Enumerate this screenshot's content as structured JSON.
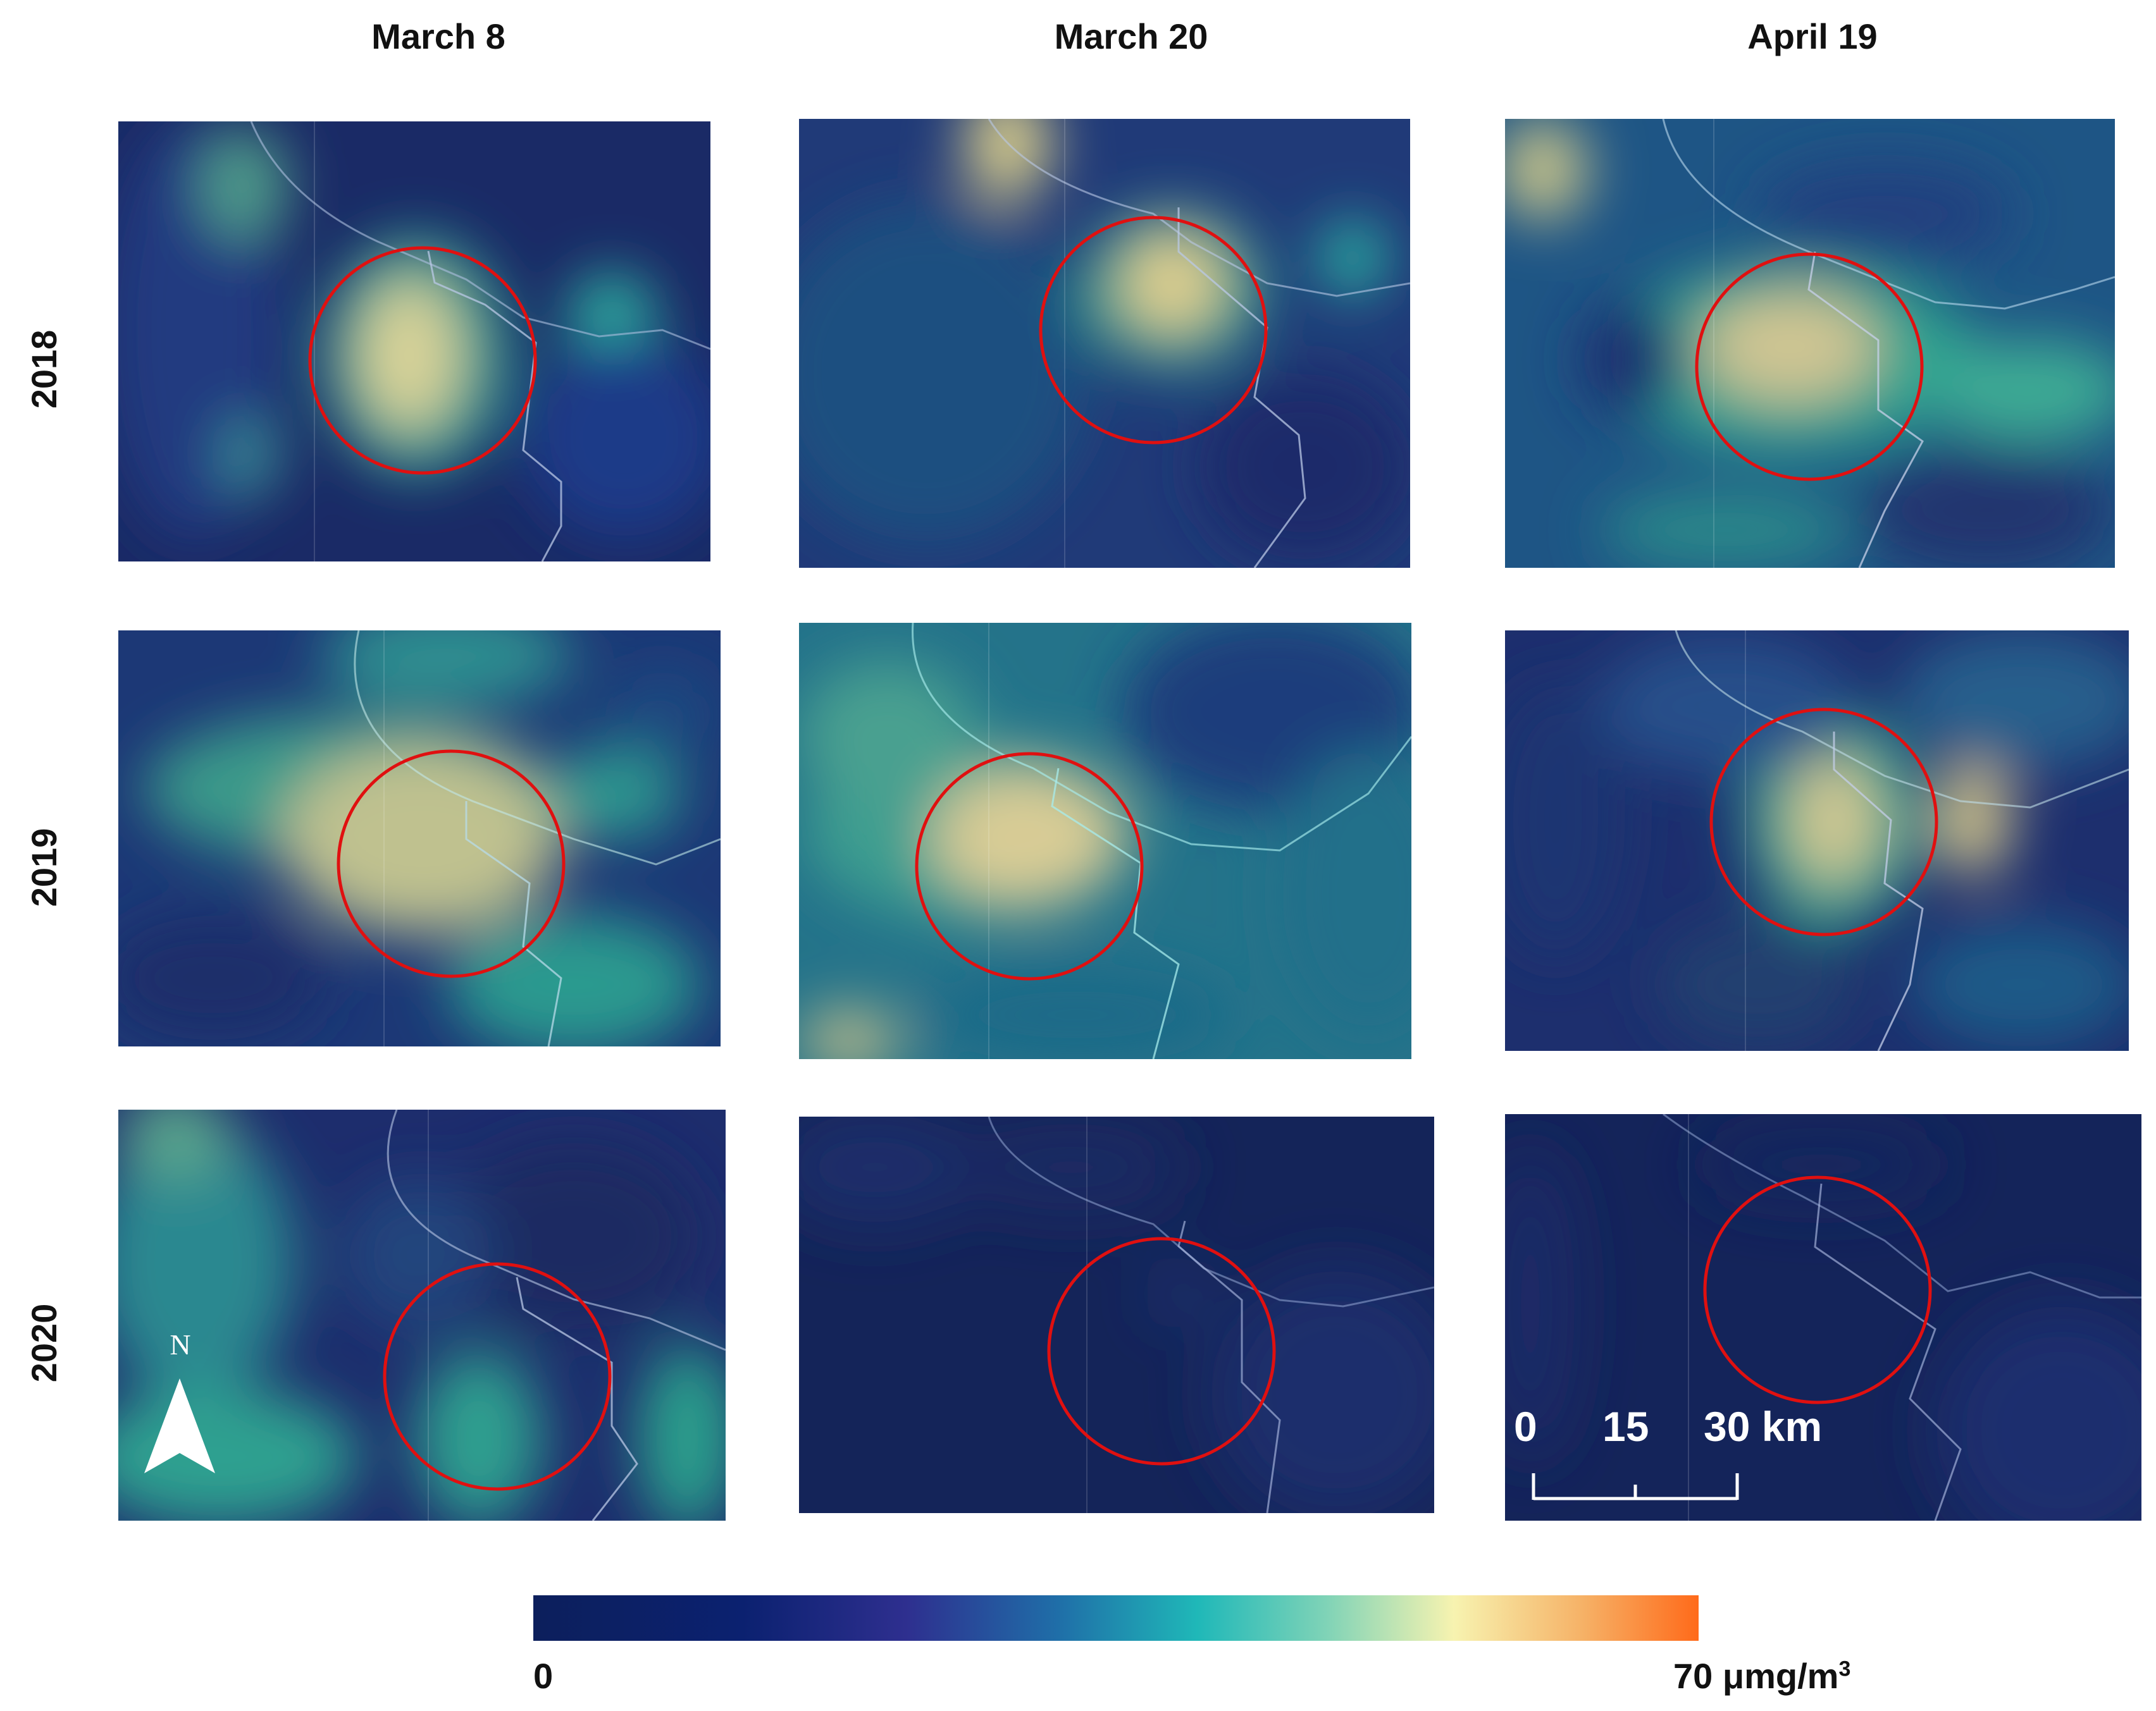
{
  "columns": [
    "March 8",
    "March 20",
    "April 19"
  ],
  "rows": [
    "2018",
    "2019",
    "2020"
  ],
  "colors": {
    "scale_low": "#0c1f5c",
    "scale_mid_blue": "#2e2f8f",
    "scale_teal": "#1fb8b8",
    "scale_pale": "#f7f3b0",
    "scale_high": "#ff6a1a",
    "circle": "#e01010",
    "border_line": "#c8d6ea"
  },
  "highlight_marker": "red-circle",
  "north_arrow": {
    "label": "N"
  },
  "scale_bar": {
    "ticks": [
      "0",
      "15",
      "30 km"
    ]
  },
  "colorbar": {
    "min_label": "0",
    "max_label": "70 μmg/m",
    "unit_superscript": "3"
  },
  "panels": [
    {
      "row": "2018",
      "column": "March 8",
      "level": "high"
    },
    {
      "row": "2018",
      "column": "March 20",
      "level": "high"
    },
    {
      "row": "2018",
      "column": "April 19",
      "level": "high"
    },
    {
      "row": "2019",
      "column": "March 8",
      "level": "high"
    },
    {
      "row": "2019",
      "column": "March 20",
      "level": "high"
    },
    {
      "row": "2019",
      "column": "April 19",
      "level": "high"
    },
    {
      "row": "2020",
      "column": "March 8",
      "level": "low"
    },
    {
      "row": "2020",
      "column": "March 20",
      "level": "very-low"
    },
    {
      "row": "2020",
      "column": "April 19",
      "level": "very-low"
    }
  ]
}
